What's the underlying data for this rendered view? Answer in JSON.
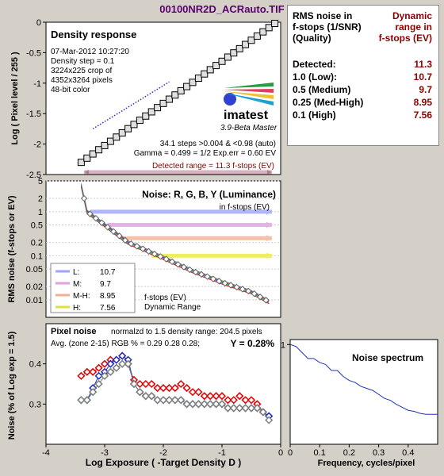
{
  "title": "00100NR2D_ACRauto.TIF",
  "panel_density": {
    "heading": "Density response",
    "info": [
      "07-Mar-2012 10:27:20",
      "Density step = 0.1",
      "3224x225 crop of",
      "4352x3264 pixels",
      "48-bit color"
    ],
    "logo": "imatest",
    "logo_sub": "3.9-Beta  Master",
    "steps_line": "34.1 steps >0.004 & <0.98 (auto)",
    "gamma_line": "Gamma = 0.499 = 1/2  Exp.err = 0.60 EV",
    "detected_line": "Detected range = 11.3 f-stops (EV)",
    "ylabel": "Log ( Pixel level / 255 )"
  },
  "panel_noise": {
    "heading": "Noise: R, G, B, Y (Luminance)",
    "sub": "in f-stops (EV)",
    "ylabel": "RMS noise (f-stops or EV)",
    "legend_rows": [
      {
        "k": "L:",
        "v": "10.7"
      },
      {
        "k": "M:",
        "v": "9.7"
      },
      {
        "k": "M-H:",
        "v": "8.95"
      },
      {
        "k": "H:",
        "v": "7.56"
      }
    ],
    "legend_note1": "f-stops (EV)",
    "legend_note2": "Dynamic Range"
  },
  "panel_pixel": {
    "heading": "Pixel noise",
    "norm_line": "normalzd to 1.5 density range: 204.5 pixels",
    "avg_line": "Avg. (zone 2-15) RGB % = 0.29  0.28  0.28;",
    "y_line": "Y = 0.28%",
    "ylabel": "Noise (% of Log exp = 1.5)",
    "xlabel": "Log Exposure ( -Target Density D )"
  },
  "panel_spectrum": {
    "heading": "Noise spectrum",
    "xlabel": "Frequency, cycles/pixel"
  },
  "side_table": {
    "col1": [
      "RMS noise in",
      "f-stops (1/SNR)",
      "(Quality)"
    ],
    "col2": [
      "Dynamic",
      "range in",
      "f-stops (EV)"
    ],
    "rows": [
      {
        "label": "Detected:",
        "value": "11.3"
      },
      {
        "label": "1.0   (Low):",
        "value": "10.7"
      },
      {
        "label": "0.5   (Medium)",
        "value": "9.7"
      },
      {
        "label": "0.25 (Med-High)",
        "value": "8.95"
      },
      {
        "label": "0.1   (High)",
        "value": "7.56"
      }
    ]
  },
  "colors": {
    "red": "#e00000",
    "green": "#30a030",
    "blue": "#2030c0",
    "gray": "#808080",
    "ev_text": "#8b0000"
  },
  "chart_data": [
    {
      "type": "line",
      "title": "Density response",
      "ylabel": "Log ( Pixel level / 255 )",
      "xlim": [
        -4,
        0
      ],
      "ylim": [
        -2.5,
        0
      ],
      "yticks": [
        0,
        -0.5,
        -1,
        -1.5,
        -2,
        -2.5
      ],
      "series": [
        {
          "x_start": -3.4,
          "x_end": -0.1,
          "y_start": -2.3,
          "y_end": -0.02,
          "points": 34
        }
      ]
    },
    {
      "type": "line",
      "title": "Noise: R, G, B, Y (Luminance)",
      "ylabel": "RMS noise (f-stops or EV)",
      "scale": "log",
      "yticks": [
        "5",
        "2",
        "1",
        "0.5",
        "0.2",
        "0.1",
        "0.05",
        "0.02",
        "0.01"
      ],
      "ylim": [
        0.004,
        5
      ],
      "xlim": [
        -4,
        0
      ],
      "dynamic_range_ev": {
        "L": 10.7,
        "M": 9.7,
        "M-H": 8.95,
        "H": 7.56
      },
      "curve": [
        [
          -3.4,
          4.0
        ],
        [
          -3.3,
          1.0
        ],
        [
          -3.0,
          0.5
        ],
        [
          -2.6,
          0.2
        ],
        [
          -2.0,
          0.09
        ],
        [
          -1.5,
          0.045
        ],
        [
          -1.0,
          0.025
        ],
        [
          -0.5,
          0.015
        ],
        [
          -0.2,
          0.009
        ]
      ]
    },
    {
      "type": "scatter",
      "title": "Pixel noise",
      "ylabel": "Noise (% of Log exp = 1.5)",
      "xlabel": "Log Exposure ( -Target Density D )",
      "xlim": [
        -4,
        0
      ],
      "ylim": [
        0.2,
        0.5
      ],
      "xticks": [
        -4,
        -3,
        -2,
        -1,
        0
      ],
      "yticks": [
        0.3,
        0.4
      ],
      "series": [
        {
          "name": "R",
          "x": [
            -3.4,
            -3.3,
            -3.2,
            -3.1,
            -3.0,
            -2.9,
            -2.8,
            -2.7,
            -2.6,
            -2.5,
            -2.4,
            -2.3,
            -2.2,
            -2.1,
            -2.0,
            -1.9,
            -1.8,
            -1.7,
            -1.6,
            -1.5,
            -1.4,
            -1.3,
            -1.2,
            -1.1,
            -1.0,
            -0.9,
            -0.8,
            -0.7,
            -0.6,
            -0.5,
            -0.4,
            -0.3,
            -0.2
          ],
          "y": [
            0.37,
            0.38,
            0.38,
            0.39,
            0.4,
            0.41,
            0.41,
            0.42,
            0.4,
            0.36,
            0.35,
            0.35,
            0.35,
            0.34,
            0.34,
            0.34,
            0.34,
            0.35,
            0.34,
            0.33,
            0.33,
            0.32,
            0.32,
            0.32,
            0.32,
            0.31,
            0.31,
            0.32,
            0.31,
            0.31,
            0.3,
            0.28,
            0.27
          ]
        },
        {
          "name": "G",
          "x": [
            -3.4,
            -3.3,
            -3.2,
            -3.1,
            -3.0,
            -2.9,
            -2.8,
            -2.7,
            -2.6,
            -2.5,
            -2.4,
            -2.3,
            -2.2,
            -2.1,
            -2.0,
            -1.9,
            -1.8,
            -1.7,
            -1.6,
            -1.5,
            -1.4,
            -1.3,
            -1.2,
            -1.1,
            -1.0,
            -0.9,
            -0.8,
            -0.7,
            -0.6,
            -0.5,
            -0.4,
            -0.3,
            -0.2
          ],
          "y": [
            0.31,
            0.31,
            0.33,
            0.35,
            0.37,
            0.38,
            0.39,
            0.4,
            0.4,
            0.35,
            0.33,
            0.32,
            0.32,
            0.31,
            0.31,
            0.31,
            0.31,
            0.31,
            0.3,
            0.3,
            0.3,
            0.3,
            0.3,
            0.3,
            0.3,
            0.29,
            0.29,
            0.29,
            0.29,
            0.29,
            0.29,
            0.28,
            0.27
          ]
        },
        {
          "name": "B",
          "x": [
            -3.4,
            -3.3,
            -3.2,
            -3.1,
            -3.0,
            -2.9,
            -2.8,
            -2.7,
            -2.6,
            -2.5,
            -2.4,
            -2.3,
            -2.2,
            -2.1,
            -2.0,
            -1.9,
            -1.8,
            -1.7,
            -1.6,
            -1.5,
            -1.4,
            -1.3,
            -1.2,
            -1.1,
            -1.0,
            -0.9,
            -0.8,
            -0.7,
            -0.6,
            -0.5,
            -0.4,
            -0.3,
            -0.2
          ],
          "y": [
            0.31,
            0.31,
            0.34,
            0.37,
            0.38,
            0.4,
            0.41,
            0.42,
            0.41,
            0.35,
            0.33,
            0.32,
            0.32,
            0.31,
            0.31,
            0.31,
            0.31,
            0.31,
            0.3,
            0.3,
            0.3,
            0.3,
            0.3,
            0.3,
            0.3,
            0.29,
            0.29,
            0.29,
            0.29,
            0.29,
            0.29,
            0.28,
            0.27
          ]
        },
        {
          "name": "Y",
          "x": [
            -3.4,
            -3.3,
            -3.2,
            -3.1,
            -3.0,
            -2.9,
            -2.8,
            -2.7,
            -2.6,
            -2.5,
            -2.4,
            -2.3,
            -2.2,
            -2.1,
            -2.0,
            -1.9,
            -1.8,
            -1.7,
            -1.6,
            -1.5,
            -1.4,
            -1.3,
            -1.2,
            -1.1,
            -1.0,
            -0.9,
            -0.8,
            -0.7,
            -0.6,
            -0.5,
            -0.4,
            -0.3,
            -0.2
          ],
          "y": [
            0.31,
            0.31,
            0.33,
            0.35,
            0.37,
            0.38,
            0.39,
            0.4,
            0.4,
            0.35,
            0.33,
            0.32,
            0.32,
            0.31,
            0.31,
            0.31,
            0.31,
            0.31,
            0.3,
            0.3,
            0.3,
            0.3,
            0.3,
            0.3,
            0.3,
            0.29,
            0.29,
            0.29,
            0.29,
            0.29,
            0.29,
            0.28,
            0.26
          ]
        }
      ]
    },
    {
      "type": "line",
      "title": "Noise spectrum",
      "xlabel": "Frequency, cycles/pixel",
      "xlim": [
        0,
        0.5
      ],
      "xticks": [
        0,
        0.1,
        0.2,
        0.3,
        0.4
      ],
      "yticks": [
        1
      ],
      "ylim": [
        0,
        1.05
      ],
      "x": [
        0.0,
        0.02,
        0.04,
        0.06,
        0.08,
        0.1,
        0.12,
        0.14,
        0.16,
        0.18,
        0.2,
        0.22,
        0.24,
        0.26,
        0.28,
        0.3,
        0.32,
        0.34,
        0.36,
        0.38,
        0.4,
        0.42,
        0.44,
        0.46,
        0.48,
        0.5
      ],
      "y": [
        1.0,
        0.98,
        0.92,
        0.86,
        0.86,
        0.82,
        0.8,
        0.74,
        0.74,
        0.68,
        0.64,
        0.62,
        0.58,
        0.56,
        0.54,
        0.5,
        0.46,
        0.44,
        0.4,
        0.37,
        0.34,
        0.33,
        0.31,
        0.3,
        0.3,
        0.3
      ]
    }
  ]
}
